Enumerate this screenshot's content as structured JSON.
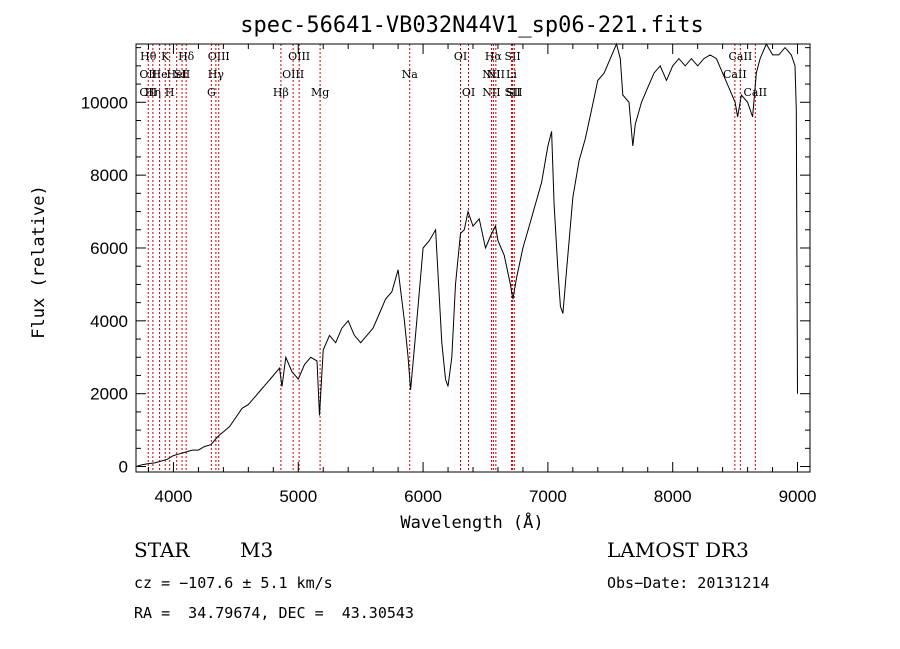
{
  "chart_data": {
    "type": "line",
    "title": "spec-56641-VB032N44V1_sp06-221.fits",
    "xlabel": "Wavelength (Å)",
    "ylabel": "Flux (relative)",
    "xlim": [
      3700,
      9100
    ],
    "ylim": [
      -150,
      11600
    ],
    "xticks": [
      4000,
      5000,
      6000,
      7000,
      8000,
      9000
    ],
    "xtick_labels": [
      "4000",
      "5000",
      "6000",
      "7000",
      "8000",
      "9000"
    ],
    "yticks": [
      0,
      2000,
      4000,
      6000,
      8000,
      10000
    ],
    "ytick_labels": [
      "0",
      "2000",
      "4000",
      "6000",
      "8000",
      "10000"
    ],
    "series": [
      {
        "name": "flux",
        "x": [
          3700,
          3750,
          3800,
          3850,
          3900,
          3950,
          4000,
          4050,
          4100,
          4150,
          4200,
          4250,
          4300,
          4350,
          4380,
          4400,
          4450,
          4500,
          4550,
          4600,
          4650,
          4700,
          4750,
          4800,
          4850,
          4870,
          4900,
          4950,
          5000,
          5050,
          5100,
          5150,
          5170,
          5200,
          5250,
          5300,
          5350,
          5400,
          5450,
          5500,
          5550,
          5600,
          5650,
          5700,
          5750,
          5800,
          5850,
          5880,
          5900,
          5950,
          6000,
          6050,
          6100,
          6150,
          6180,
          6200,
          6230,
          6260,
          6300,
          6330,
          6360,
          6400,
          6450,
          6500,
          6550,
          6580,
          6600,
          6650,
          6700,
          6720,
          6750,
          6800,
          6850,
          6900,
          6950,
          7000,
          7030,
          7050,
          7080,
          7100,
          7120,
          7150,
          7200,
          7250,
          7300,
          7350,
          7400,
          7450,
          7500,
          7550,
          7580,
          7600,
          7650,
          7680,
          7700,
          7750,
          7800,
          7850,
          7900,
          7950,
          8000,
          8050,
          8100,
          8150,
          8200,
          8250,
          8300,
          8350,
          8400,
          8450,
          8500,
          8520,
          8550,
          8600,
          8640,
          8670,
          8700,
          8750,
          8800,
          8850,
          8900,
          8950,
          8980,
          8990,
          9000
        ],
        "y": [
          0,
          50,
          80,
          100,
          150,
          200,
          300,
          350,
          400,
          450,
          450,
          550,
          600,
          800,
          900,
          950,
          1100,
          1350,
          1600,
          1700,
          1900,
          2100,
          2300,
          2500,
          2700,
          2200,
          3000,
          2600,
          2400,
          2800,
          3000,
          2900,
          1400,
          3200,
          3600,
          3400,
          3800,
          4000,
          3600,
          3400,
          3600,
          3800,
          4200,
          4600,
          4800,
          5400,
          4000,
          3000,
          2100,
          4000,
          6000,
          6200,
          6500,
          3400,
          2400,
          2200,
          3000,
          5000,
          6400,
          6500,
          7000,
          6600,
          6800,
          6000,
          6400,
          6600,
          6200,
          5800,
          5000,
          4600,
          5200,
          6000,
          6600,
          7200,
          7800,
          8800,
          9200,
          7200,
          5400,
          4400,
          4200,
          5400,
          7400,
          8400,
          9000,
          9800,
          10600,
          10800,
          11200,
          11600,
          11200,
          10200,
          10000,
          8800,
          9400,
          10000,
          10400,
          10800,
          11000,
          10600,
          11000,
          11200,
          11000,
          11200,
          11000,
          11200,
          11300,
          11200,
          10800,
          10400,
          10000,
          9600,
          10200,
          10000,
          9600,
          10800,
          11200,
          11600,
          11300,
          11300,
          11500,
          11300,
          11000,
          9800,
          2000
        ]
      }
    ],
    "line_markers": [
      {
        "x": 3798,
        "label": "Hθ",
        "row": 1
      },
      {
        "x": 3798,
        "label": "OII",
        "row": 2
      },
      {
        "x": 3798,
        "label": "OII",
        "row": 3
      },
      {
        "x": 3835,
        "label": "Hη",
        "row": 3
      },
      {
        "x": 3889,
        "label": "He",
        "row": 2
      },
      {
        "x": 3934,
        "label": "K",
        "row": 1
      },
      {
        "x": 3970,
        "label": "H",
        "row": 3
      },
      {
        "x": 4026,
        "label": "HeI",
        "row": 2
      },
      {
        "x": 4069,
        "label": "SII",
        "row": 2
      },
      {
        "x": 4102,
        "label": "Hδ",
        "row": 1
      },
      {
        "x": 4304,
        "label": "G",
        "row": 3
      },
      {
        "x": 4340,
        "label": "Hγ",
        "row": 2
      },
      {
        "x": 4363,
        "label": "OIII",
        "row": 1
      },
      {
        "x": 4861,
        "label": "Hβ",
        "row": 3
      },
      {
        "x": 4959,
        "label": "OIII",
        "row": 2
      },
      {
        "x": 5007,
        "label": "OIII",
        "row": 1
      },
      {
        "x": 5175,
        "label": "Mg",
        "row": 3
      },
      {
        "x": 5893,
        "label": "Na",
        "row": 2
      },
      {
        "x": 6300,
        "label": "OI",
        "row": 1
      },
      {
        "x": 6364,
        "label": "OI",
        "row": 3
      },
      {
        "x": 6548,
        "label": "NII",
        "row": 2
      },
      {
        "x": 6548,
        "label": "NII",
        "row": 3
      },
      {
        "x": 6563,
        "label": "Hα",
        "row": 1
      },
      {
        "x": 6583,
        "label": "NII",
        "row": 2
      },
      {
        "x": 6708,
        "label": "Li",
        "row": 2
      },
      {
        "x": 6717,
        "label": "SII",
        "row": 1
      },
      {
        "x": 6717,
        "label": "SII",
        "row": 3
      },
      {
        "x": 6731,
        "label": "SII",
        "row": 3
      },
      {
        "x": 8498,
        "label": "CaII",
        "row": 2
      },
      {
        "x": 8542,
        "label": "CaII",
        "row": 1
      },
      {
        "x": 8662,
        "label": "CaII",
        "row": 3
      }
    ],
    "colors": {
      "line": "#000000",
      "marker": "#cc0000",
      "axis": "#000000"
    }
  },
  "footer": {
    "object_class": "STAR",
    "subclass": "M3",
    "survey": "LAMOST DR3",
    "cz": "cz = −107.6 ± 5.1 km/s",
    "obs_date": "Obs−Date: 20131214",
    "coords": "RA =  34.79674, DEC =  43.30543"
  }
}
